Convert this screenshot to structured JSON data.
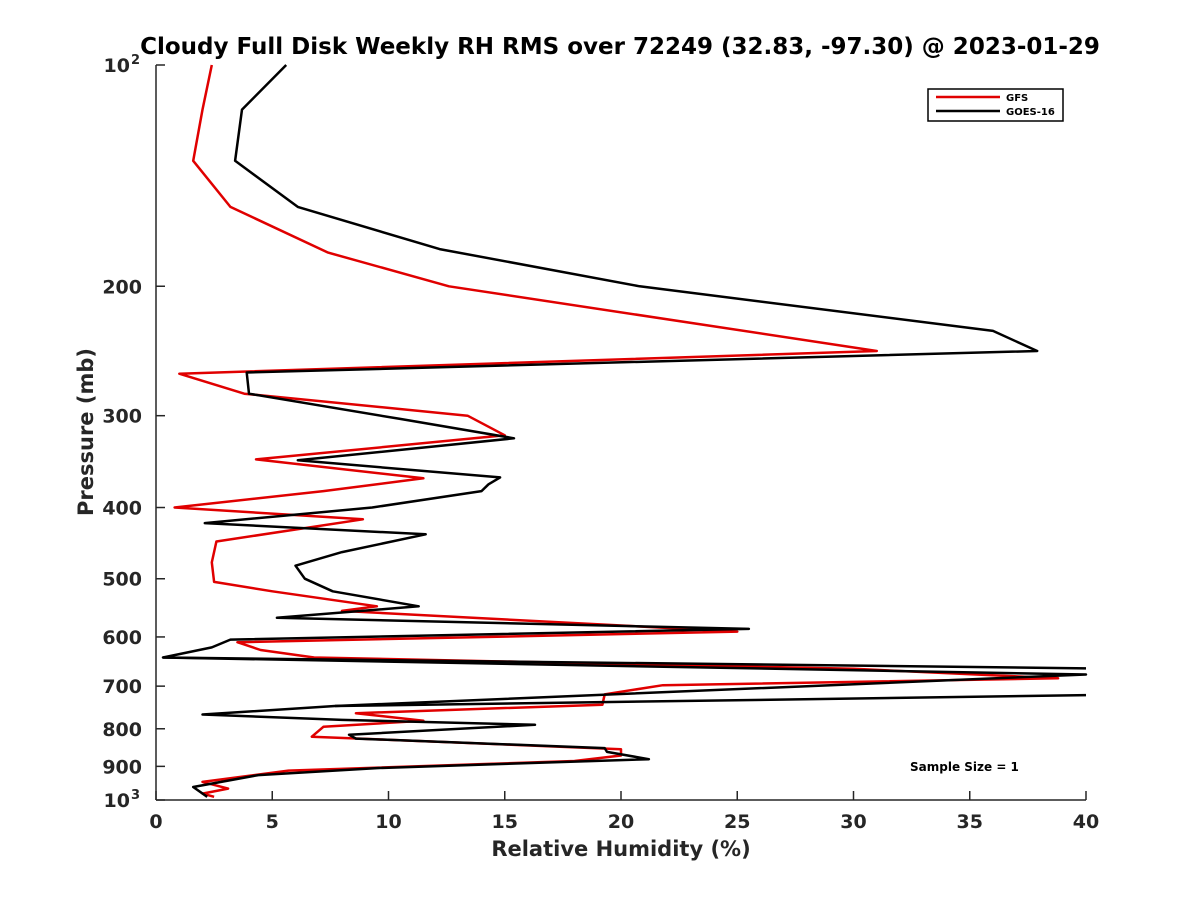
{
  "chart_data": {
    "type": "line",
    "title": "Cloudy Full Disk Weekly RH RMS over 72249 (32.83, -97.30) @ 2023-01-29",
    "xlabel": "Relative Humidity (%)",
    "ylabel": "Pressure (mb)",
    "xlim": [
      0,
      40
    ],
    "ylim": [
      100,
      1000
    ],
    "y_scale": "log",
    "y_reversed": true,
    "grid": false,
    "legend_position": "top-right",
    "x_ticks": [
      "0",
      "5",
      "10",
      "15",
      "20",
      "25",
      "30",
      "35",
      "40"
    ],
    "y_ticks": [
      {
        "value": 100,
        "base": "10",
        "exp": "2"
      },
      {
        "value": 200,
        "label": "200"
      },
      {
        "value": 300,
        "label": "300"
      },
      {
        "value": 400,
        "label": "400"
      },
      {
        "value": 500,
        "label": "500"
      },
      {
        "value": 600,
        "label": "600"
      },
      {
        "value": 700,
        "label": "700"
      },
      {
        "value": 800,
        "label": "800"
      },
      {
        "value": 900,
        "label": "900"
      },
      {
        "value": 1000,
        "base": "10",
        "exp": "3"
      }
    ],
    "annotation": "Sample Size = 1",
    "series": [
      {
        "name": "GFS",
        "color": "#e00000",
        "points": [
          [
            2.4,
            100
          ],
          [
            2.0,
            115
          ],
          [
            1.6,
            135
          ],
          [
            3.2,
            156
          ],
          [
            7.4,
            180
          ],
          [
            12.6,
            200
          ],
          [
            31.0,
            245
          ],
          [
            1.0,
            263
          ],
          [
            3.8,
            280
          ],
          [
            13.4,
            300
          ],
          [
            15.0,
            319
          ],
          [
            4.3,
            344
          ],
          [
            11.5,
            365
          ],
          [
            7.2,
            380
          ],
          [
            0.8,
            400
          ],
          [
            8.9,
            415
          ],
          [
            2.6,
            445
          ],
          [
            2.4,
            475
          ],
          [
            2.5,
            505
          ],
          [
            5.0,
            520
          ],
          [
            9.5,
            545
          ],
          [
            8.0,
            553
          ],
          [
            25.0,
            590
          ],
          [
            3.5,
            610
          ],
          [
            4.5,
            625
          ],
          [
            6.8,
            640
          ],
          [
            30.0,
            663
          ],
          [
            38.8,
            683
          ],
          [
            21.8,
            698
          ],
          [
            19.3,
            718
          ],
          [
            19.2,
            742
          ],
          [
            8.6,
            762
          ],
          [
            11.5,
            780
          ],
          [
            7.2,
            795
          ],
          [
            6.7,
            820
          ],
          [
            20.0,
            853
          ],
          [
            20.0,
            870
          ],
          [
            18.0,
            885
          ],
          [
            5.7,
            912
          ],
          [
            2.0,
            945
          ],
          [
            3.1,
            965
          ],
          [
            2.0,
            980
          ],
          [
            2.5,
            990
          ]
        ]
      },
      {
        "name": "GOES-16",
        "color": "#000000",
        "points": [
          [
            5.6,
            100
          ],
          [
            3.7,
            115
          ],
          [
            3.4,
            135
          ],
          [
            6.1,
            156
          ],
          [
            12.2,
            178
          ],
          [
            20.8,
            200
          ],
          [
            36.0,
            230
          ],
          [
            37.9,
            245
          ],
          [
            3.9,
            262
          ],
          [
            4.0,
            280
          ],
          [
            10.5,
            303
          ],
          [
            15.4,
            322
          ],
          [
            6.1,
            345
          ],
          [
            14.8,
            364
          ],
          [
            14.3,
            372
          ],
          [
            14.0,
            380
          ],
          [
            9.3,
            400
          ],
          [
            2.1,
            420
          ],
          [
            11.6,
            435
          ],
          [
            8.0,
            460
          ],
          [
            6.0,
            480
          ],
          [
            6.4,
            500
          ],
          [
            7.6,
            520
          ],
          [
            11.3,
            545
          ],
          [
            5.2,
            565
          ],
          [
            25.5,
            585
          ],
          [
            3.2,
            605
          ],
          [
            2.4,
            620
          ],
          [
            0.3,
            640
          ],
          [
            40.0,
            675
          ],
          [
            7.7,
            745
          ],
          [
            2.0,
            765
          ],
          [
            8.0,
            778
          ],
          [
            16.3,
            790
          ],
          [
            8.3,
            815
          ],
          [
            8.6,
            825
          ],
          [
            19.3,
            850
          ],
          [
            19.4,
            860
          ],
          [
            21.2,
            880
          ],
          [
            9.5,
            905
          ],
          [
            4.4,
            925
          ],
          [
            1.6,
            960
          ],
          [
            2.2,
            990
          ]
        ]
      }
    ],
    "extra_black_segments": [
      [
        [
          0.3,
          640
        ],
        [
          40.0,
          662
        ]
      ],
      [
        [
          40.0,
          720
        ],
        [
          7.7,
          745
        ]
      ]
    ]
  }
}
